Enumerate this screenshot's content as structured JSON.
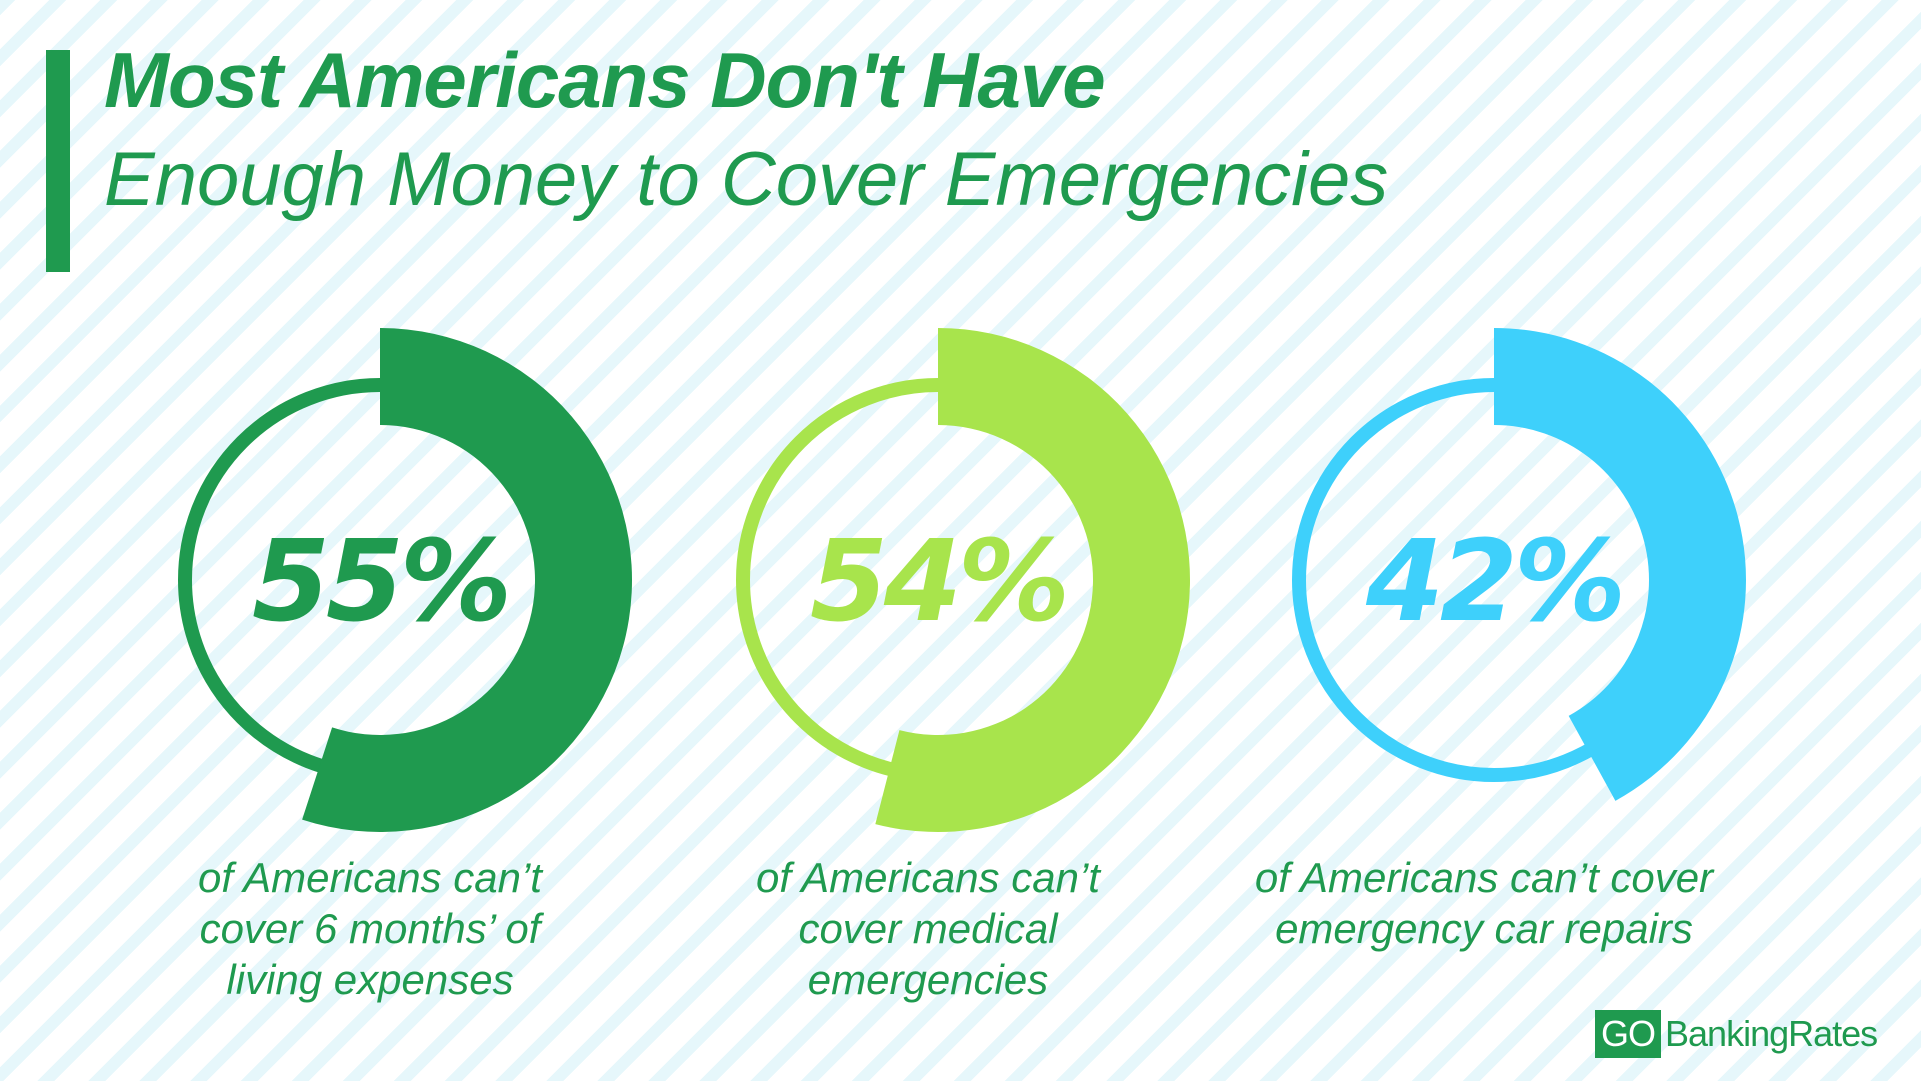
{
  "title": {
    "line1": "Most Americans Don't Have",
    "line2": "Enough Money to Cover Emergencies"
  },
  "chart_data": {
    "type": "pie",
    "title": "Most Americans Don't Have Enough Money to Cover Emergencies",
    "items": [
      {
        "value": 55,
        "label": "55%",
        "caption": [
          "of Americans can’t",
          "cover 6 months’ of",
          "living expenses"
        ],
        "color": "#1f9a4f"
      },
      {
        "value": 54,
        "label": "54%",
        "caption": [
          "of Americans can’t",
          "cover medical",
          "emergencies"
        ],
        "color": "#a8e44c"
      },
      {
        "value": 42,
        "label": "42%",
        "caption": [
          "of Americans can’t cover",
          "emergency car repairs"
        ],
        "color": "#3ed0fb"
      }
    ]
  },
  "logo": {
    "go": "GO",
    "rest": "BankingRates"
  }
}
